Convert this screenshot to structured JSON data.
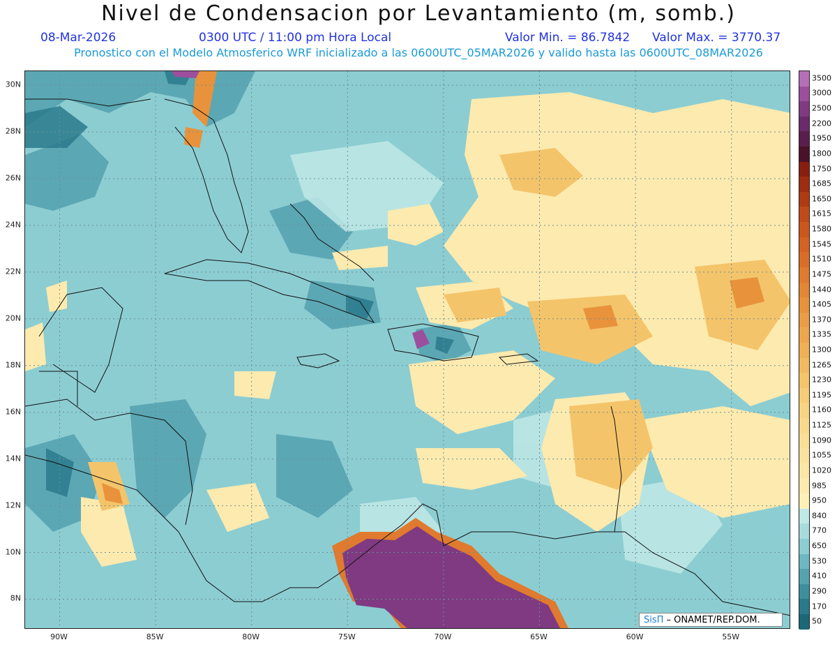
{
  "header": {
    "title": "Nivel de Condensacion por Levantamiento (m, somb.)",
    "date": "08-Mar-2026",
    "time": "0300 UTC / 11:00 pm Hora Local",
    "min_value": "Valor Min. = 86.7842",
    "max_value": "Valor Max. = 3770.37",
    "model_info": "Pronostico con el Modelo Atmosferico WRF inicializado a las 0600UTC_05MAR2026 y valido hasta las  0600UTC_08MAR2026"
  },
  "map": {
    "lat_labels": [
      "30N",
      "28N",
      "26N",
      "24N",
      "22N",
      "20N",
      "18N",
      "16N",
      "14N",
      "12N",
      "10N",
      "8N"
    ],
    "lat_values": [
      30,
      28,
      26,
      24,
      22,
      20,
      18,
      16,
      14,
      12,
      10,
      8
    ],
    "lon_labels": [
      "90W",
      "85W",
      "80W",
      "75W",
      "70W",
      "65W",
      "60W",
      "55W"
    ],
    "lon_values": [
      -90,
      -85,
      -80,
      -75,
      -70,
      -65,
      -60,
      -55
    ],
    "lat_range": [
      6.7,
      30.6
    ],
    "lon_range": [
      -91.8,
      -51.9
    ]
  },
  "colorbar": {
    "labels": [
      "3500",
      "3000",
      "2500",
      "2200",
      "1950",
      "1800",
      "1750",
      "1685",
      "1650",
      "1615",
      "1580",
      "1545",
      "1510",
      "1475",
      "1440",
      "1405",
      "1370",
      "1335",
      "1300",
      "1265",
      "1230",
      "1195",
      "1160",
      "1125",
      "1090",
      "1055",
      "1020",
      "985",
      "950",
      "840",
      "770",
      "650",
      "530",
      "410",
      "290",
      "170",
      "50"
    ],
    "colors": [
      "#b56fb6",
      "#9c4f9c",
      "#7f3a82",
      "#6a2a6c",
      "#5a1e4c",
      "#4a1228",
      "#8a1e0e",
      "#9e2c10",
      "#b03a12",
      "#c04a18",
      "#cc561c",
      "#d46222",
      "#da6e28",
      "#e07a2e",
      "#e48634",
      "#e8923c",
      "#eb9c44",
      "#eea64c",
      "#f0b056",
      "#f2ba60",
      "#f4c46a",
      "#f6cc76",
      "#f8d482",
      "#f9da8c",
      "#fade96",
      "#fbe29e",
      "#fce6a6",
      "#fdeaae",
      "#fdf0b8",
      "#bfe8e6",
      "#a8dcdc",
      "#8ccdd2",
      "#6eb8c2",
      "#56a3b0",
      "#3e8e9e",
      "#2a7a8c",
      "#1c6878"
    ]
  },
  "credit": {
    "brand": "SisΠ",
    "org": " – ONAMET/REP.DOM."
  }
}
